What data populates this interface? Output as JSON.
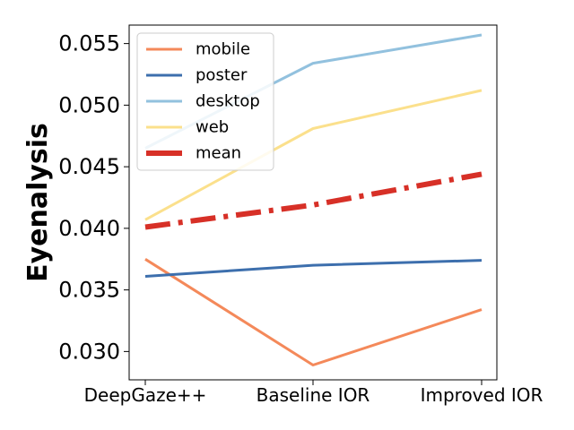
{
  "chart_data": {
    "type": "line",
    "ylabel": "Eyenalysis",
    "xlabel": "",
    "categories": [
      "DeepGaze++",
      "Baseline IOR",
      "Improved IOR"
    ],
    "ylim": [
      0.0277,
      0.0565
    ],
    "yticks": [
      0.03,
      0.035,
      0.04,
      0.045,
      0.05,
      0.055
    ],
    "ytick_labels": [
      "0.030",
      "0.035",
      "0.040",
      "0.045",
      "0.050",
      "0.055"
    ],
    "grid": false,
    "legend_position": "top-left",
    "series": [
      {
        "name": "mobile",
        "color": "#f4895a",
        "style": "solid",
        "values": [
          0.0375,
          0.0289,
          0.0334
        ]
      },
      {
        "name": "poster",
        "color": "#3d6fad",
        "style": "solid",
        "values": [
          0.0361,
          0.037,
          0.0374
        ]
      },
      {
        "name": "desktop",
        "color": "#92c1de",
        "style": "solid",
        "values": [
          0.0465,
          0.0534,
          0.0557
        ]
      },
      {
        "name": "web",
        "color": "#fbe08c",
        "style": "solid",
        "values": [
          0.0407,
          0.0481,
          0.0512
        ]
      },
      {
        "name": "mean",
        "color": "#d73027",
        "style": "dashdot",
        "values": [
          0.0401,
          0.0419,
          0.0444
        ]
      }
    ]
  }
}
